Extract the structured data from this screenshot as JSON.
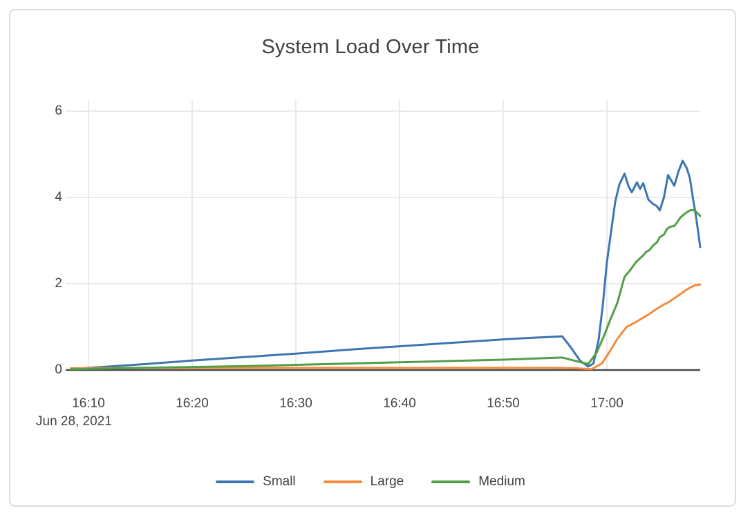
{
  "chart_data": {
    "type": "line",
    "title": "System Load Over Time",
    "x_axis": {
      "date_label": "Jun 28, 2021",
      "ticks": [
        {
          "label": "16:10",
          "minute": 10
        },
        {
          "label": "16:20",
          "minute": 20
        },
        {
          "label": "16:30",
          "minute": 30
        },
        {
          "label": "16:40",
          "minute": 40
        },
        {
          "label": "16:50",
          "minute": 50
        },
        {
          "label": "17:00",
          "minute": 60
        }
      ],
      "range_minutes_after_1600": [
        8.3,
        69
      ],
      "note": "time of day, Jun 28 2021"
    },
    "y_axis": {
      "ticks": [
        {
          "label": "0",
          "value": 0
        },
        {
          "label": "2",
          "value": 2
        },
        {
          "label": "4",
          "value": 4
        },
        {
          "label": "6",
          "value": 6
        }
      ],
      "range": [
        0,
        6.3
      ],
      "grid": true
    },
    "legend_position": "bottom-center",
    "series": [
      {
        "name": "Small",
        "color": "#3c76b0",
        "points_t_minutes_vs_load": [
          [
            8.3,
            0.02
          ],
          [
            10,
            0.05
          ],
          [
            15,
            0.13
          ],
          [
            20,
            0.22
          ],
          [
            25,
            0.3
          ],
          [
            30,
            0.38
          ],
          [
            35,
            0.47
          ],
          [
            40,
            0.55
          ],
          [
            45,
            0.63
          ],
          [
            50,
            0.71
          ],
          [
            53,
            0.75
          ],
          [
            55.7,
            0.78
          ],
          [
            56.6,
            0.5
          ],
          [
            57.4,
            0.22
          ],
          [
            58.2,
            0.08
          ],
          [
            58.7,
            0.15
          ],
          [
            59.2,
            0.7
          ],
          [
            59.6,
            1.5
          ],
          [
            60,
            2.5
          ],
          [
            60.4,
            3.2
          ],
          [
            60.8,
            3.9
          ],
          [
            61.2,
            4.3
          ],
          [
            61.7,
            4.55
          ],
          [
            62.1,
            4.25
          ],
          [
            62.4,
            4.12
          ],
          [
            62.9,
            4.35
          ],
          [
            63.2,
            4.2
          ],
          [
            63.5,
            4.33
          ],
          [
            64,
            3.95
          ],
          [
            64.4,
            3.86
          ],
          [
            64.8,
            3.8
          ],
          [
            65.1,
            3.7
          ],
          [
            65.5,
            4.0
          ],
          [
            65.9,
            4.52
          ],
          [
            66.5,
            4.27
          ],
          [
            66.9,
            4.6
          ],
          [
            67.3,
            4.85
          ],
          [
            67.7,
            4.68
          ],
          [
            68,
            4.45
          ],
          [
            68.3,
            3.98
          ],
          [
            68.6,
            3.55
          ],
          [
            69,
            2.85
          ]
        ]
      },
      {
        "name": "Large",
        "color": "#f28c3c",
        "points_t_minutes_vs_load": [
          [
            8.3,
            0.04
          ],
          [
            15,
            0.05
          ],
          [
            25,
            0.05
          ],
          [
            35,
            0.05
          ],
          [
            45,
            0.05
          ],
          [
            55,
            0.05
          ],
          [
            57,
            0.04
          ],
          [
            58.5,
            0.02
          ],
          [
            59.5,
            0.15
          ],
          [
            60.2,
            0.4
          ],
          [
            61,
            0.72
          ],
          [
            61.9,
            1.0
          ],
          [
            62.7,
            1.1
          ],
          [
            63.4,
            1.2
          ],
          [
            64.1,
            1.3
          ],
          [
            64.8,
            1.42
          ],
          [
            65.5,
            1.52
          ],
          [
            66,
            1.58
          ],
          [
            66.6,
            1.68
          ],
          [
            67.2,
            1.78
          ],
          [
            67.6,
            1.85
          ],
          [
            68.1,
            1.92
          ],
          [
            68.6,
            1.97
          ],
          [
            69,
            1.98
          ]
        ]
      },
      {
        "name": "Medium",
        "color": "#529e46",
        "points_t_minutes_vs_load": [
          [
            8.3,
            0.02
          ],
          [
            15,
            0.05
          ],
          [
            20,
            0.07
          ],
          [
            25,
            0.09
          ],
          [
            30,
            0.12
          ],
          [
            35,
            0.15
          ],
          [
            40,
            0.18
          ],
          [
            45,
            0.21
          ],
          [
            50,
            0.24
          ],
          [
            55.7,
            0.29
          ],
          [
            57,
            0.21
          ],
          [
            58.2,
            0.14
          ],
          [
            59,
            0.4
          ],
          [
            59.7,
            0.78
          ],
          [
            60.3,
            1.15
          ],
          [
            61,
            1.55
          ],
          [
            61.7,
            2.16
          ],
          [
            62.2,
            2.3
          ],
          [
            62.8,
            2.5
          ],
          [
            63.5,
            2.66
          ],
          [
            63.8,
            2.74
          ],
          [
            64.1,
            2.78
          ],
          [
            64.5,
            2.9
          ],
          [
            64.8,
            2.95
          ],
          [
            65.1,
            3.08
          ],
          [
            65.5,
            3.14
          ],
          [
            65.8,
            3.27
          ],
          [
            66.1,
            3.32
          ],
          [
            66.5,
            3.34
          ],
          [
            66.8,
            3.43
          ],
          [
            67.1,
            3.54
          ],
          [
            67.6,
            3.64
          ],
          [
            68,
            3.7
          ],
          [
            68.3,
            3.71
          ],
          [
            68.6,
            3.67
          ],
          [
            69,
            3.57
          ]
        ]
      }
    ],
    "style": {
      "grid_color": "#e7e7e7",
      "axis_color": "#4a4a4a",
      "text_color": "#444444",
      "background": "#ffffff"
    }
  }
}
